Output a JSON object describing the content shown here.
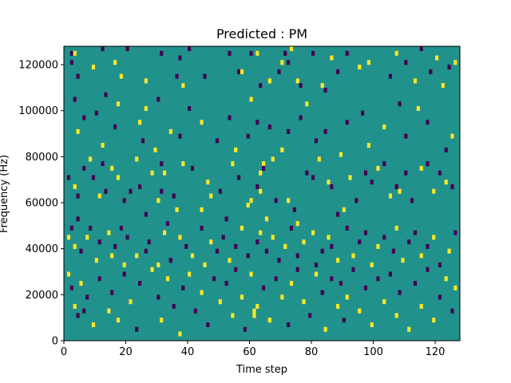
{
  "chart_data": {
    "type": "heatmap",
    "title": "Predicted : PM",
    "xlabel": "Time step",
    "ylabel": "Frequency (Hz)",
    "xlim": [
      0,
      128
    ],
    "ylim": [
      0,
      128000
    ],
    "x_ticks": [
      0,
      20,
      40,
      60,
      80,
      100,
      120
    ],
    "x_tick_labels": [
      "0",
      "20",
      "40",
      "60",
      "80",
      "100",
      "120"
    ],
    "y_ticks": [
      0,
      20000,
      40000,
      60000,
      80000,
      100000,
      120000
    ],
    "y_tick_labels": [
      "0",
      "20000",
      "40000",
      "60000",
      "80000",
      "100000",
      "120000"
    ],
    "n_time_steps": 128,
    "n_freq_bins": 64,
    "grid": false,
    "colormap": "viridis",
    "colors": {
      "low": "#440154",
      "mid": "#21918c",
      "high": "#fde725"
    },
    "background_value": 0,
    "cells": [
      [
        2,
        62,
        -1
      ],
      [
        2,
        60,
        -1
      ],
      [
        3,
        62,
        1
      ],
      [
        4,
        57,
        -1
      ],
      [
        6,
        6,
        -1
      ],
      [
        9,
        59,
        1
      ],
      [
        12,
        63,
        -1
      ],
      [
        16,
        60,
        1
      ],
      [
        18,
        57,
        1
      ],
      [
        20,
        63,
        -1
      ],
      [
        26,
        56,
        1
      ],
      [
        26,
        50,
        1
      ],
      [
        30,
        52,
        -1
      ],
      [
        31,
        62,
        -1
      ],
      [
        36,
        57,
        -1
      ],
      [
        37,
        61,
        -1
      ],
      [
        38,
        55,
        1
      ],
      [
        40,
        63,
        -1
      ],
      [
        45,
        57,
        -1
      ],
      [
        53,
        62,
        -1
      ],
      [
        56,
        58,
        -1
      ],
      [
        57,
        58,
        1
      ],
      [
        60,
        62,
        -1
      ],
      [
        62,
        62,
        1
      ],
      [
        63,
        55,
        -1
      ],
      [
        66,
        56,
        1
      ],
      [
        69,
        58,
        -1
      ],
      [
        70,
        60,
        1
      ],
      [
        71,
        62,
        -1
      ],
      [
        72,
        60,
        -1
      ],
      [
        73,
        63,
        1
      ],
      [
        75,
        56,
        1
      ],
      [
        76,
        55,
        -1
      ],
      [
        80,
        62,
        -1
      ],
      [
        83,
        55,
        1
      ],
      [
        84,
        54,
        -1
      ],
      [
        86,
        61,
        1
      ],
      [
        88,
        58,
        -1
      ],
      [
        91,
        62,
        -1
      ],
      [
        95,
        59,
        1
      ],
      [
        98,
        60,
        1
      ],
      [
        105,
        57,
        -1
      ],
      [
        107,
        62,
        1
      ],
      [
        110,
        60,
        -1
      ],
      [
        113,
        56,
        1
      ],
      [
        115,
        63,
        -1
      ],
      [
        118,
        58,
        -1
      ],
      [
        120,
        61,
        1
      ],
      [
        122,
        55,
        1
      ],
      [
        124,
        59,
        -1
      ],
      [
        126,
        60,
        1
      ],
      [
        3,
        52,
        -1
      ],
      [
        4,
        45,
        1
      ],
      [
        6,
        48,
        -1
      ],
      [
        10,
        49,
        -1
      ],
      [
        12,
        42,
        1
      ],
      [
        13,
        53,
        -1
      ],
      [
        16,
        46,
        -1
      ],
      [
        17,
        51,
        1
      ],
      [
        24,
        47,
        1
      ],
      [
        25,
        43,
        -1
      ],
      [
        29,
        41,
        1
      ],
      [
        31,
        38,
        -1
      ],
      [
        34,
        45,
        1
      ],
      [
        37,
        44,
        -1
      ],
      [
        40,
        50,
        -1
      ],
      [
        44,
        47,
        1
      ],
      [
        49,
        43,
        -1
      ],
      [
        53,
        48,
        -1
      ],
      [
        55,
        41,
        1
      ],
      [
        59,
        44,
        -1
      ],
      [
        60,
        52,
        1
      ],
      [
        62,
        47,
        -1
      ],
      [
        63,
        36,
        1
      ],
      [
        64,
        38,
        1
      ],
      [
        66,
        46,
        -1
      ],
      [
        70,
        41,
        1
      ],
      [
        72,
        45,
        -1
      ],
      [
        76,
        48,
        -1
      ],
      [
        78,
        51,
        1
      ],
      [
        81,
        43,
        -1
      ],
      [
        84,
        45,
        -1
      ],
      [
        89,
        40,
        1
      ],
      [
        91,
        47,
        -1
      ],
      [
        96,
        49,
        -1
      ],
      [
        98,
        42,
        1
      ],
      [
        103,
        46,
        1
      ],
      [
        108,
        51,
        -1
      ],
      [
        110,
        44,
        -1
      ],
      [
        114,
        50,
        1
      ],
      [
        117,
        47,
        -1
      ],
      [
        123,
        41,
        -1
      ],
      [
        125,
        44,
        1
      ],
      [
        1,
        35,
        -1
      ],
      [
        3,
        33,
        1
      ],
      [
        4,
        31,
        -1
      ],
      [
        6,
        37,
        -1
      ],
      [
        8,
        39,
        1
      ],
      [
        9,
        35,
        -1
      ],
      [
        11,
        31,
        1
      ],
      [
        12,
        38,
        -1
      ],
      [
        13,
        32,
        -1
      ],
      [
        15,
        37,
        1
      ],
      [
        17,
        35,
        1
      ],
      [
        19,
        30,
        -1
      ],
      [
        21,
        32,
        -1
      ],
      [
        23,
        39,
        1
      ],
      [
        24,
        33,
        -1
      ],
      [
        26,
        27,
        -1
      ],
      [
        28,
        36,
        1
      ],
      [
        30,
        30,
        1
      ],
      [
        31,
        32,
        -1
      ],
      [
        32,
        36,
        1
      ],
      [
        33,
        25,
        -1
      ],
      [
        35,
        31,
        -1
      ],
      [
        36,
        28,
        1
      ],
      [
        38,
        38,
        1
      ],
      [
        41,
        37,
        -1
      ],
      [
        44,
        28,
        1
      ],
      [
        46,
        34,
        1
      ],
      [
        47,
        31,
        1
      ],
      [
        50,
        32,
        -1
      ],
      [
        52,
        26,
        -1
      ],
      [
        54,
        38,
        1
      ],
      [
        56,
        35,
        -1
      ],
      [
        59,
        29,
        1
      ],
      [
        60,
        30,
        1
      ],
      [
        62,
        33,
        -1
      ],
      [
        63,
        32,
        1
      ],
      [
        64,
        37,
        -1
      ],
      [
        65,
        26,
        1
      ],
      [
        67,
        39,
        1
      ],
      [
        68,
        30,
        -1
      ],
      [
        72,
        30,
        1
      ],
      [
        74,
        28,
        -1
      ],
      [
        75,
        25,
        1
      ],
      [
        78,
        36,
        -1
      ],
      [
        80,
        35,
        -1
      ],
      [
        82,
        39,
        1
      ],
      [
        85,
        34,
        1
      ],
      [
        86,
        33,
        -1
      ],
      [
        88,
        27,
        -1
      ],
      [
        90,
        28,
        1
      ],
      [
        92,
        35,
        1
      ],
      [
        94,
        30,
        -1
      ],
      [
        97,
        36,
        -1
      ],
      [
        99,
        34,
        -1
      ],
      [
        101,
        37,
        1
      ],
      [
        103,
        38,
        -1
      ],
      [
        105,
        31,
        1
      ],
      [
        107,
        33,
        -1
      ],
      [
        108,
        32,
        1
      ],
      [
        110,
        36,
        -1
      ],
      [
        112,
        30,
        -1
      ],
      [
        115,
        37,
        1
      ],
      [
        117,
        38,
        -1
      ],
      [
        119,
        32,
        1
      ],
      [
        121,
        36,
        -1
      ],
      [
        123,
        34,
        1
      ],
      [
        125,
        33,
        -1
      ],
      [
        1,
        22,
        1
      ],
      [
        2,
        24,
        -1
      ],
      [
        3,
        20,
        1
      ],
      [
        4,
        26,
        -1
      ],
      [
        5,
        19,
        -1
      ],
      [
        7,
        22,
        1
      ],
      [
        8,
        24,
        -1
      ],
      [
        10,
        17,
        1
      ],
      [
        11,
        21,
        -1
      ],
      [
        14,
        23,
        1
      ],
      [
        15,
        18,
        1
      ],
      [
        16,
        20,
        -1
      ],
      [
        18,
        24,
        -1
      ],
      [
        19,
        16,
        1
      ],
      [
        20,
        22,
        -1
      ],
      [
        23,
        18,
        1
      ],
      [
        26,
        19,
        -1
      ],
      [
        27,
        21,
        -1
      ],
      [
        30,
        16,
        1
      ],
      [
        32,
        23,
        1
      ],
      [
        34,
        17,
        -1
      ],
      [
        37,
        22,
        1
      ],
      [
        39,
        20,
        -1
      ],
      [
        41,
        18,
        1
      ],
      [
        44,
        24,
        -1
      ],
      [
        45,
        16,
        1
      ],
      [
        47,
        21,
        1
      ],
      [
        49,
        19,
        -1
      ],
      [
        51,
        22,
        -1
      ],
      [
        53,
        17,
        1
      ],
      [
        55,
        20,
        -1
      ],
      [
        57,
        24,
        1
      ],
      [
        59,
        18,
        -1
      ],
      [
        62,
        21,
        -1
      ],
      [
        63,
        23,
        1
      ],
      [
        65,
        19,
        -1
      ],
      [
        67,
        22,
        1
      ],
      [
        69,
        17,
        -1
      ],
      [
        71,
        20,
        1
      ],
      [
        73,
        24,
        -1
      ],
      [
        75,
        18,
        -1
      ],
      [
        77,
        21,
        1
      ],
      [
        80,
        23,
        1
      ],
      [
        81,
        16,
        -1
      ],
      [
        83,
        19,
        -1
      ],
      [
        85,
        22,
        1
      ],
      [
        86,
        20,
        -1
      ],
      [
        88,
        17,
        1
      ],
      [
        91,
        24,
        -1
      ],
      [
        93,
        18,
        1
      ],
      [
        95,
        21,
        -1
      ],
      [
        97,
        23,
        -1
      ],
      [
        99,
        16,
        1
      ],
      [
        101,
        20,
        1
      ],
      [
        103,
        22,
        -1
      ],
      [
        106,
        19,
        -1
      ],
      [
        107,
        24,
        1
      ],
      [
        109,
        17,
        1
      ],
      [
        111,
        21,
        -1
      ],
      [
        113,
        23,
        -1
      ],
      [
        115,
        18,
        1
      ],
      [
        117,
        20,
        -1
      ],
      [
        119,
        22,
        1
      ],
      [
        121,
        16,
        -1
      ],
      [
        124,
        19,
        1
      ],
      [
        126,
        23,
        -1
      ],
      [
        1,
        14,
        1
      ],
      [
        2,
        11,
        -1
      ],
      [
        3,
        7,
        1
      ],
      [
        4,
        5,
        -1
      ],
      [
        5,
        12,
        1
      ],
      [
        7,
        9,
        -1
      ],
      [
        9,
        3,
        1
      ],
      [
        11,
        13,
        -1
      ],
      [
        14,
        6,
        1
      ],
      [
        15,
        10,
        -1
      ],
      [
        17,
        4,
        1
      ],
      [
        19,
        14,
        -1
      ],
      [
        21,
        8,
        1
      ],
      [
        23,
        2,
        -1
      ],
      [
        24,
        12,
        -1
      ],
      [
        28,
        15,
        1
      ],
      [
        30,
        9,
        -1
      ],
      [
        31,
        4,
        1
      ],
      [
        33,
        13,
        1
      ],
      [
        35,
        7,
        -1
      ],
      [
        37,
        1,
        1
      ],
      [
        38,
        11,
        -1
      ],
      [
        40,
        14,
        1
      ],
      [
        42,
        6,
        -1
      ],
      [
        44,
        10,
        1
      ],
      [
        46,
        3,
        -1
      ],
      [
        48,
        13,
        -1
      ],
      [
        50,
        8,
        1
      ],
      [
        52,
        12,
        -1
      ],
      [
        54,
        5,
        1
      ],
      [
        55,
        15,
        -1
      ],
      [
        57,
        9,
        1
      ],
      [
        58,
        2,
        -1
      ],
      [
        60,
        14,
        1
      ],
      [
        61,
        6,
        1
      ],
      [
        61,
        5,
        1
      ],
      [
        62,
        7,
        1
      ],
      [
        64,
        11,
        -1
      ],
      [
        66,
        4,
        1
      ],
      [
        68,
        13,
        -1
      ],
      [
        70,
        9,
        1
      ],
      [
        72,
        3,
        -1
      ],
      [
        73,
        12,
        1
      ],
      [
        75,
        15,
        -1
      ],
      [
        77,
        8,
        1
      ],
      [
        79,
        5,
        -1
      ],
      [
        81,
        14,
        1
      ],
      [
        83,
        10,
        -1
      ],
      [
        84,
        2,
        1
      ],
      [
        86,
        13,
        -1
      ],
      [
        88,
        7,
        1
      ],
      [
        89,
        12,
        -1
      ],
      [
        90,
        4,
        -1
      ],
      [
        91,
        9,
        1
      ],
      [
        93,
        15,
        -1
      ],
      [
        95,
        6,
        1
      ],
      [
        97,
        11,
        -1
      ],
      [
        99,
        3,
        1
      ],
      [
        101,
        13,
        -1
      ],
      [
        103,
        8,
        1
      ],
      [
        105,
        14,
        -1
      ],
      [
        107,
        5,
        1
      ],
      [
        108,
        10,
        -1
      ],
      [
        111,
        2,
        1
      ],
      [
        113,
        12,
        -1
      ],
      [
        115,
        7,
        1
      ],
      [
        117,
        15,
        -1
      ],
      [
        119,
        4,
        1
      ],
      [
        121,
        9,
        -1
      ],
      [
        123,
        13,
        1
      ],
      [
        125,
        6,
        -1
      ],
      [
        126,
        11,
        1
      ]
    ]
  }
}
